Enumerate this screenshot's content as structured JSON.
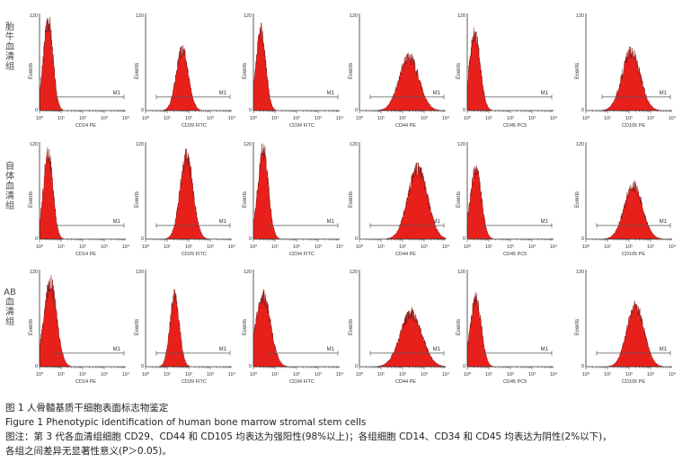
{
  "row_labels": [
    "胎牛血清组",
    "自体血清组",
    "AB 血清组"
  ],
  "panel_common": {
    "y_axis_label": "Events",
    "y_tick_top": "120",
    "y_tick_zero": "0",
    "x_ticks": [
      "10⁰",
      "10¹",
      "10²",
      "10³",
      "10⁴"
    ],
    "gate_label": "M1"
  },
  "chart_data": [
    {
      "type": "histogram",
      "panel": "胎牛血清组-CD14",
      "xlabel": "CD14 PE",
      "peak_log": 0.4,
      "width": 0.22,
      "height": 0.93,
      "gate_log": [
        0.75,
        4.0
      ]
    },
    {
      "type": "histogram",
      "panel": "胎牛血清组-CD29",
      "xlabel": "CD29 FITC",
      "peak_log": 1.7,
      "width": 0.28,
      "height": 0.62,
      "gate_log": [
        0.5,
        4.0
      ]
    },
    {
      "type": "histogram",
      "panel": "胎牛血清组-CD34",
      "xlabel": "CD34 FITC",
      "peak_log": 0.35,
      "width": 0.22,
      "height": 0.82,
      "gate_log": [
        0.75,
        4.0
      ]
    },
    {
      "type": "histogram",
      "panel": "胎牛血清组-CD44",
      "xlabel": "CD44 PE",
      "peak_log": 2.3,
      "width": 0.45,
      "height": 0.55,
      "gate_log": [
        0.5,
        4.0
      ]
    },
    {
      "type": "histogram",
      "panel": "胎牛血清组-CD45",
      "xlabel": "CD45 PC5",
      "peak_log": 0.35,
      "width": 0.25,
      "height": 0.78,
      "gate_log": [
        0.75,
        4.0
      ]
    },
    {
      "type": "histogram",
      "panel": "胎牛血清组-CD105",
      "xlabel": "CD105 PE",
      "peak_log": 2.1,
      "width": 0.42,
      "height": 0.6,
      "gate_log": [
        0.75,
        4.0
      ]
    },
    {
      "type": "histogram",
      "panel": "自体血清组-CD14",
      "xlabel": "CD14 PE",
      "peak_log": 0.4,
      "width": 0.22,
      "height": 0.88,
      "gate_log": [
        0.75,
        4.0
      ]
    },
    {
      "type": "histogram",
      "panel": "自体血清组-CD29",
      "xlabel": "CD29 FITC",
      "peak_log": 1.9,
      "width": 0.3,
      "height": 0.85,
      "gate_log": [
        0.5,
        4.0
      ]
    },
    {
      "type": "histogram",
      "panel": "自体血清组-CD34",
      "xlabel": "CD34 FITC",
      "peak_log": 0.45,
      "width": 0.24,
      "height": 0.92,
      "gate_log": [
        0.75,
        4.0
      ]
    },
    {
      "type": "histogram",
      "panel": "自体血清组-CD44",
      "xlabel": "CD44 PE",
      "peak_log": 2.7,
      "width": 0.45,
      "height": 0.72,
      "gate_log": [
        0.5,
        4.0
      ]
    },
    {
      "type": "histogram",
      "panel": "自体血清组-CD45",
      "xlabel": "CD45 PC5",
      "peak_log": 0.4,
      "width": 0.25,
      "height": 0.72,
      "gate_log": [
        0.75,
        4.0
      ]
    },
    {
      "type": "histogram",
      "panel": "自体血清组-CD105",
      "xlabel": "CD105 PE",
      "peak_log": 2.2,
      "width": 0.42,
      "height": 0.55,
      "gate_log": [
        0.5,
        4.0
      ]
    },
    {
      "type": "histogram",
      "panel": "AB血清组-CD14",
      "xlabel": "CD14 PE",
      "peak_log": 0.5,
      "width": 0.3,
      "height": 0.85,
      "gate_log": [
        0.75,
        4.0
      ]
    },
    {
      "type": "histogram",
      "panel": "AB血清组-CD29",
      "xlabel": "CD29 FITC",
      "peak_log": 1.35,
      "width": 0.22,
      "height": 0.72,
      "gate_log": [
        0.5,
        4.0
      ]
    },
    {
      "type": "histogram",
      "panel": "AB血清组-CD34",
      "xlabel": "CD34 FITC",
      "peak_log": 0.45,
      "width": 0.35,
      "height": 0.72,
      "gate_log": [
        0.75,
        4.0
      ]
    },
    {
      "type": "histogram",
      "panel": "AB血清组-CD44",
      "xlabel": "CD44 PE",
      "peak_log": 2.4,
      "width": 0.5,
      "height": 0.55,
      "gate_log": [
        0.5,
        4.0
      ]
    },
    {
      "type": "histogram",
      "panel": "AB血清组-CD45",
      "xlabel": "CD45 PC5",
      "peak_log": 0.4,
      "width": 0.25,
      "height": 0.7,
      "gate_log": [
        0.75,
        4.0
      ]
    },
    {
      "type": "histogram",
      "panel": "AB血清组-CD105",
      "xlabel": "CD105 PE",
      "peak_log": 2.3,
      "width": 0.4,
      "height": 0.62,
      "gate_log": [
        0.5,
        4.0
      ]
    }
  ],
  "caption": {
    "cn_title": "图 1   人骨髓基质干细胞表面标志物鉴定",
    "en_title": "Figure 1   Phenotypic identification of human bone marrow stromal stem cells",
    "note_line1": "图注：第 3 代各血清组细胞 CD29、CD44 和 CD105 均表达为强阳性(98%以上)；各组细胞 CD14、CD34 和 CD45 均表达为阴性(2%以下)，",
    "note_line2": "各组之间差异无显著性意义(P＞0.05)。"
  },
  "colors": {
    "fill": "#e8201c",
    "axis": "#333333",
    "gate": "#555555"
  }
}
